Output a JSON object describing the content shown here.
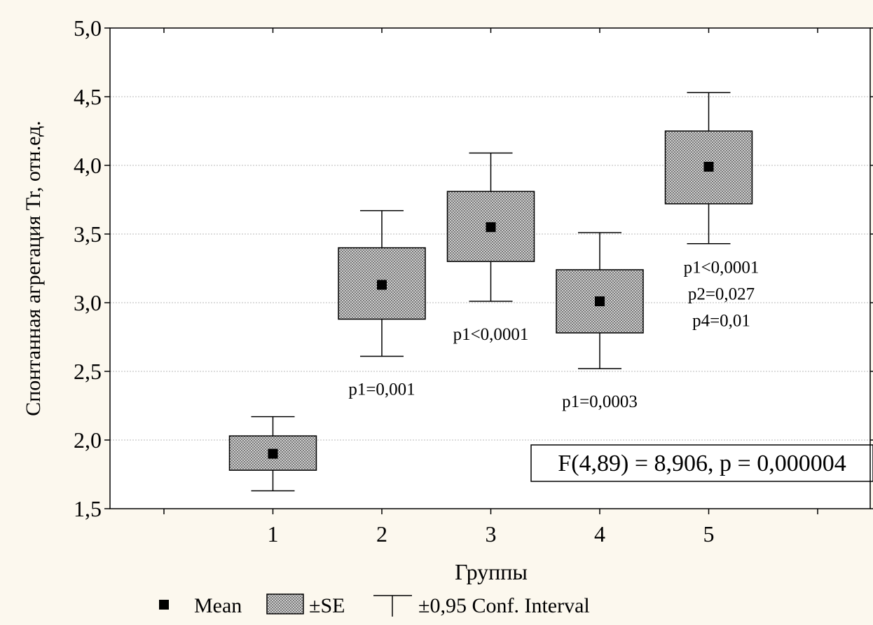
{
  "chart_data": {
    "type": "box",
    "ylabel": "Спонтанная агрегация Tr, отн.ед.",
    "xlabel": "Группы",
    "ylim": [
      1.5,
      5.0
    ],
    "y_ticks": [
      "1,5",
      "2,0",
      "2,5",
      "3,0",
      "3,5",
      "4,0",
      "4,5",
      "5,0"
    ],
    "y_tick_values": [
      1.5,
      2.0,
      2.5,
      3.0,
      3.5,
      4.0,
      4.5,
      5.0
    ],
    "grid": true,
    "categories": [
      "1",
      "2",
      "3",
      "4",
      "5"
    ],
    "groups": [
      {
        "label": "1",
        "mean": 1.9,
        "se_low": 1.78,
        "se_high": 2.03,
        "ci_low": 1.63,
        "ci_high": 2.17,
        "annotations": []
      },
      {
        "label": "2",
        "mean": 3.13,
        "se_low": 2.88,
        "se_high": 3.4,
        "ci_low": 2.61,
        "ci_high": 3.67,
        "annotations": [
          "p1=0,001"
        ]
      },
      {
        "label": "3",
        "mean": 3.55,
        "se_low": 3.3,
        "se_high": 3.81,
        "ci_low": 3.01,
        "ci_high": 4.09,
        "annotations": [
          "p1<0,0001"
        ]
      },
      {
        "label": "4",
        "mean": 3.01,
        "se_low": 2.78,
        "se_high": 3.24,
        "ci_low": 2.52,
        "ci_high": 3.51,
        "annotations": [
          "p1=0,0003"
        ]
      },
      {
        "label": "5",
        "mean": 3.99,
        "se_low": 3.72,
        "se_high": 4.25,
        "ci_low": 3.43,
        "ci_high": 4.53,
        "annotations": [
          "p1<0,0001",
          "p2=0,027",
          "p4=0,01"
        ]
      }
    ],
    "stat_box": "F(4,89) = 8,906, p = 0,000004",
    "legend": {
      "position": "bottom",
      "items": [
        {
          "key": "mean",
          "label": "Mean"
        },
        {
          "key": "se",
          "label": "±SE"
        },
        {
          "key": "ci",
          "label": "±0,95 Conf. Interval"
        }
      ]
    },
    "colors": {
      "background": "#FCF8EE",
      "plot_area": "#FFFFFF",
      "axis": "#000000",
      "grid": "#B8B8B8"
    }
  }
}
